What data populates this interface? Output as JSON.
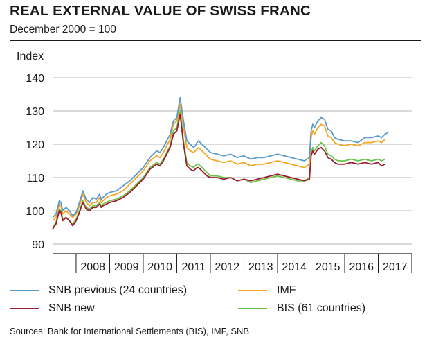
{
  "title": "REAL EXTERNAL VALUE OF SWISS FRANC",
  "subtitle": "December 2000 = 100",
  "source": "Sources: Bank for International Settlements (BIS), IMF, SNB",
  "chart_data": {
    "type": "line",
    "ylabel": "Index",
    "xlabel": "",
    "ylim": [
      90,
      140
    ],
    "xlim": [
      2007.3,
      2018.0
    ],
    "yticks": [
      90,
      100,
      110,
      120,
      130,
      140
    ],
    "xtick_labels": [
      "2008",
      "2009",
      "2010",
      "2011",
      "2012",
      "2013",
      "2014",
      "2015",
      "2016",
      "2017"
    ],
    "grid": "horizontal",
    "legend_position": "bottom",
    "series": [
      {
        "name": "SNB previous (24 countries)",
        "color": "#5b9bc9",
        "x": [
          2007.3,
          2007.4,
          2007.5,
          2007.55,
          2007.6,
          2007.7,
          2007.8,
          2007.9,
          2008.0,
          2008.1,
          2008.2,
          2008.3,
          2008.4,
          2008.5,
          2008.6,
          2008.7,
          2008.75,
          2008.8,
          2008.9,
          2009.0,
          2009.2,
          2009.4,
          2009.6,
          2009.8,
          2010.0,
          2010.2,
          2010.4,
          2010.5,
          2010.6,
          2010.7,
          2010.8,
          2010.9,
          2011.0,
          2011.1,
          2011.2,
          2011.3,
          2011.4,
          2011.5,
          2011.55,
          2011.6,
          2011.65,
          2011.7,
          2011.8,
          2011.9,
          2012.0,
          2012.2,
          2012.4,
          2012.6,
          2012.8,
          2013.0,
          2013.2,
          2013.4,
          2013.6,
          2013.8,
          2014.0,
          2014.2,
          2014.4,
          2014.6,
          2014.8,
          2014.95,
          2015.0,
          2015.05,
          2015.1,
          2015.2,
          2015.3,
          2015.4,
          2015.5,
          2015.6,
          2015.7,
          2015.8,
          2016.0,
          2016.2,
          2016.4,
          2016.6,
          2016.8,
          2017.0,
          2017.1,
          2017.2,
          2017.3
        ],
        "y": [
          98,
          99,
          103,
          102.5,
          100,
          101,
          100,
          98.5,
          99.5,
          102.5,
          106,
          103.5,
          102.5,
          104,
          103.5,
          105,
          103.5,
          104,
          105,
          105.5,
          106,
          107.5,
          109,
          111,
          113,
          116,
          118,
          117.5,
          119,
          121,
          123,
          127,
          128,
          134,
          127,
          121,
          120,
          119,
          119.5,
          120.5,
          121,
          120.5,
          119.5,
          118.5,
          117.5,
          117,
          116.5,
          117,
          116,
          116.5,
          115.5,
          116,
          116,
          116.5,
          117,
          116.5,
          116,
          115.5,
          115,
          116,
          124,
          126,
          125,
          127,
          128,
          127.5,
          124.5,
          124,
          122,
          121.5,
          121,
          121,
          120.5,
          122,
          122,
          122.5,
          122,
          123,
          123.5
        ]
      },
      {
        "name": "IMF",
        "color": "#f5a623",
        "x": [
          2007.3,
          2007.4,
          2007.5,
          2007.55,
          2007.6,
          2007.7,
          2007.8,
          2007.9,
          2008.0,
          2008.1,
          2008.2,
          2008.3,
          2008.4,
          2008.5,
          2008.6,
          2008.7,
          2008.75,
          2008.8,
          2008.9,
          2009.0,
          2009.2,
          2009.4,
          2009.6,
          2009.8,
          2010.0,
          2010.2,
          2010.4,
          2010.5,
          2010.6,
          2010.7,
          2010.8,
          2010.9,
          2011.0,
          2011.1,
          2011.2,
          2011.3,
          2011.4,
          2011.5,
          2011.55,
          2011.6,
          2011.65,
          2011.7,
          2011.8,
          2011.9,
          2012.0,
          2012.2,
          2012.4,
          2012.6,
          2012.8,
          2013.0,
          2013.2,
          2013.4,
          2013.6,
          2013.8,
          2014.0,
          2014.2,
          2014.4,
          2014.6,
          2014.8,
          2014.95,
          2015.0,
          2015.05,
          2015.1,
          2015.2,
          2015.3,
          2015.4,
          2015.5,
          2015.6,
          2015.7,
          2015.8,
          2016.0,
          2016.2,
          2016.4,
          2016.6,
          2016.8,
          2017.0,
          2017.1,
          2017.2
        ],
        "y": [
          97,
          98,
          102,
          101.5,
          99,
          100,
          99,
          98,
          99,
          101.5,
          105,
          102.5,
          101.5,
          102.5,
          102.5,
          104,
          102.5,
          103,
          104,
          104.5,
          105,
          106,
          108,
          110,
          112,
          115,
          116.5,
          116,
          117.5,
          119.5,
          121.5,
          126,
          127,
          132,
          125,
          119,
          118,
          117.5,
          118,
          118.5,
          119,
          118.5,
          117.5,
          116.5,
          115.5,
          115,
          114.5,
          115,
          114,
          114.5,
          113.5,
          114,
          114,
          114.5,
          115,
          114.5,
          114,
          113.5,
          113,
          114,
          122,
          124,
          123,
          125,
          126,
          125.5,
          122.5,
          122,
          120.5,
          120,
          119.5,
          120,
          119.5,
          120.5,
          120.5,
          121,
          120.5,
          121.5
        ]
      },
      {
        "name": "SNB new",
        "color": "#9b1b30",
        "x": [
          2007.3,
          2007.4,
          2007.5,
          2007.55,
          2007.6,
          2007.7,
          2007.8,
          2007.9,
          2008.0,
          2008.1,
          2008.2,
          2008.3,
          2008.4,
          2008.5,
          2008.6,
          2008.7,
          2008.75,
          2008.8,
          2008.9,
          2009.0,
          2009.2,
          2009.4,
          2009.6,
          2009.8,
          2010.0,
          2010.2,
          2010.4,
          2010.5,
          2010.6,
          2010.7,
          2010.8,
          2010.9,
          2011.0,
          2011.1,
          2011.2,
          2011.3,
          2011.4,
          2011.5,
          2011.55,
          2011.6,
          2011.65,
          2011.7,
          2011.8,
          2011.9,
          2012.0,
          2012.2,
          2012.4,
          2012.6,
          2012.8,
          2013.0,
          2013.2,
          2013.4,
          2013.6,
          2013.8,
          2014.0,
          2014.2,
          2014.4,
          2014.6,
          2014.8,
          2014.95,
          2015.0,
          2015.05,
          2015.1,
          2015.2,
          2015.3,
          2015.4,
          2015.5,
          2015.6,
          2015.7,
          2015.8,
          2016.0,
          2016.2,
          2016.4,
          2016.6,
          2016.8,
          2017.0,
          2017.1,
          2017.2
        ],
        "y": [
          94.5,
          96,
          100,
          99.5,
          97,
          98,
          97,
          95.5,
          97,
          99.5,
          102.5,
          100.5,
          100,
          101,
          101,
          102,
          101,
          101.5,
          102,
          102.5,
          103,
          104,
          105.5,
          107.5,
          109.5,
          112.5,
          114,
          113.5,
          115,
          117,
          119,
          123,
          124,
          129,
          120,
          113.5,
          112.5,
          112,
          112.5,
          113,
          113,
          112.5,
          111.5,
          110.5,
          110,
          110,
          109.5,
          110,
          109,
          109.5,
          109,
          109.5,
          110,
          110.5,
          111,
          110.5,
          110,
          109.5,
          109,
          109.5,
          116.5,
          118,
          117,
          118.5,
          119,
          118,
          116,
          115.5,
          114.5,
          114,
          114,
          114.5,
          114,
          114.5,
          114,
          114.5,
          113.5,
          114
        ]
      },
      {
        "name": "BIS (61 countries)",
        "color": "#6cc24a",
        "x": [
          2007.3,
          2007.4,
          2007.5,
          2007.55,
          2007.6,
          2007.7,
          2007.8,
          2007.9,
          2008.0,
          2008.1,
          2008.2,
          2008.3,
          2008.4,
          2008.5,
          2008.6,
          2008.7,
          2008.75,
          2008.8,
          2008.9,
          2009.0,
          2009.2,
          2009.4,
          2009.6,
          2009.8,
          2010.0,
          2010.2,
          2010.4,
          2010.5,
          2010.6,
          2010.7,
          2010.8,
          2010.9,
          2011.0,
          2011.1,
          2011.2,
          2011.3,
          2011.4,
          2011.5,
          2011.55,
          2011.6,
          2011.65,
          2011.7,
          2011.8,
          2011.9,
          2012.0,
          2012.2,
          2012.4,
          2012.6,
          2012.8,
          2013.0,
          2013.2,
          2013.4,
          2013.6,
          2013.8,
          2014.0,
          2014.2,
          2014.4,
          2014.6,
          2014.8,
          2014.95,
          2015.0,
          2015.05,
          2015.1,
          2015.2,
          2015.3,
          2015.4,
          2015.5,
          2015.6,
          2015.7,
          2015.8,
          2016.0,
          2016.2,
          2016.4,
          2016.6,
          2016.8,
          2017.0,
          2017.1,
          2017.2
        ],
        "y": [
          95,
          96.5,
          100.5,
          100,
          97.5,
          98,
          97,
          96,
          97.5,
          100,
          103,
          101,
          100.5,
          101.5,
          101.5,
          102.5,
          101.5,
          102,
          102.5,
          103,
          103.5,
          104.5,
          106,
          108,
          110,
          113,
          114.5,
          114,
          115.5,
          117.5,
          119.5,
          124,
          125,
          130,
          121,
          114.5,
          113.5,
          113,
          113.5,
          114,
          114,
          113.5,
          112.5,
          111.5,
          110.5,
          110.5,
          110,
          110,
          109,
          109.5,
          108.5,
          109,
          109.5,
          110,
          110.5,
          110,
          109.5,
          109,
          109,
          110,
          117.5,
          119,
          118,
          119.5,
          120.5,
          119.5,
          117,
          116.5,
          115.5,
          115,
          115,
          115.5,
          115,
          115.5,
          115,
          115.5,
          115,
          115.5
        ]
      }
    ]
  }
}
